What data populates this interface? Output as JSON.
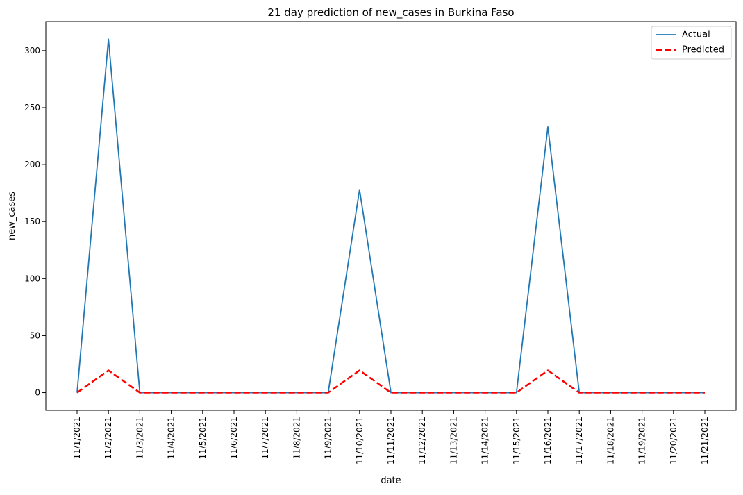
{
  "chart_data": {
    "type": "line",
    "title": "21 day prediction of new_cases in Burkina Faso",
    "xlabel": "date",
    "ylabel": "new_cases",
    "x": [
      "11/1/2021",
      "11/2/2021",
      "11/3/2021",
      "11/4/2021",
      "11/5/2021",
      "11/6/2021",
      "11/7/2021",
      "11/8/2021",
      "11/9/2021",
      "11/10/2021",
      "11/11/2021",
      "11/12/2021",
      "11/13/2021",
      "11/14/2021",
      "11/15/2021",
      "11/16/2021",
      "11/17/2021",
      "11/18/2021",
      "11/19/2021",
      "11/20/2021",
      "11/21/2021"
    ],
    "ylim": [
      -15.5,
      325.5
    ],
    "yticks": [
      0,
      50,
      100,
      150,
      200,
      250,
      300
    ],
    "grid": false,
    "legend_position": "top-right",
    "series": [
      {
        "name": "Actual",
        "color": "#1f77b4",
        "style": "solid",
        "values": [
          0,
          310,
          0,
          0,
          0,
          0,
          0,
          0,
          0,
          178,
          0,
          0,
          0,
          0,
          0,
          233,
          0,
          0,
          0,
          0,
          0
        ]
      },
      {
        "name": "Predicted",
        "color": "#ff0000",
        "style": "dashed",
        "values": [
          0,
          19.5,
          0,
          0,
          0,
          0,
          0,
          0,
          0,
          19.5,
          0,
          0,
          0,
          0,
          0,
          19.5,
          0,
          0,
          0,
          0,
          0
        ]
      }
    ]
  }
}
